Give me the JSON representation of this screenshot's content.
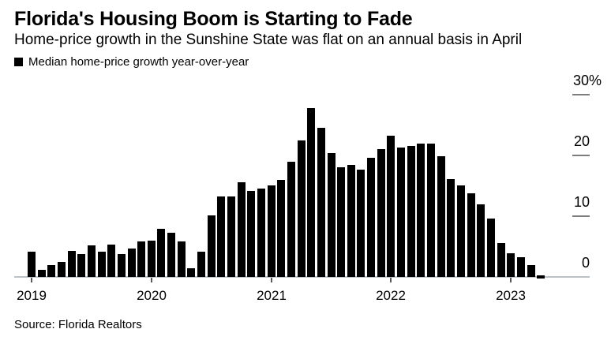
{
  "header": {
    "title": "Florida's Housing Boom is Starting to Fade",
    "subtitle": "Home-price growth in the Sunshine State was flat on an annual basis in April"
  },
  "legend": {
    "label": "Median home-price growth year-over-year",
    "swatch_color": "#000000"
  },
  "footer": {
    "source": "Source: Florida Realtors"
  },
  "chart_data": {
    "type": "bar",
    "title": "Florida's Housing Boom is Starting to Fade",
    "subtitle": "Home-price growth in the Sunshine State was flat on an annual basis in April",
    "series_name": "Median home-price growth year-over-year",
    "unit": "%",
    "x": [
      "2019-01",
      "2019-02",
      "2019-03",
      "2019-04",
      "2019-05",
      "2019-06",
      "2019-07",
      "2019-08",
      "2019-09",
      "2019-10",
      "2019-11",
      "2019-12",
      "2020-01",
      "2020-02",
      "2020-03",
      "2020-04",
      "2020-05",
      "2020-06",
      "2020-07",
      "2020-08",
      "2020-09",
      "2020-10",
      "2020-11",
      "2020-12",
      "2021-01",
      "2021-02",
      "2021-03",
      "2021-04",
      "2021-05",
      "2021-06",
      "2021-07",
      "2021-08",
      "2021-09",
      "2021-10",
      "2021-11",
      "2021-12",
      "2022-01",
      "2022-02",
      "2022-03",
      "2022-04",
      "2022-05",
      "2022-06",
      "2022-07",
      "2022-08",
      "2022-09",
      "2022-10",
      "2022-11",
      "2022-12",
      "2023-01",
      "2023-02",
      "2023-03",
      "2023-04"
    ],
    "values": [
      4.1,
      1.2,
      1.9,
      2.5,
      4.3,
      3.8,
      5.2,
      4.2,
      5.3,
      3.8,
      4.7,
      5.8,
      6.0,
      7.9,
      7.3,
      5.9,
      1.4,
      4.2,
      10.1,
      13.2,
      13.2,
      15.6,
      14.2,
      14.5,
      15.0,
      16.0,
      19.0,
      22.5,
      27.8,
      24.5,
      20.4,
      18.1,
      18.4,
      17.6,
      19.6,
      21.0,
      23.3,
      21.3,
      21.5,
      22.0,
      22.0,
      19.9,
      16.1,
      15.1,
      13.8,
      11.9,
      9.6,
      5.6,
      3.9,
      3.3,
      2.0,
      0.0
    ],
    "ylim": [
      0,
      30
    ],
    "yticks": [
      {
        "value": 0,
        "label": "0"
      },
      {
        "value": 10,
        "label": "10"
      },
      {
        "value": 20,
        "label": "20"
      },
      {
        "value": 30,
        "label": "30%"
      }
    ],
    "xticks": [
      {
        "label": "2019",
        "month_index": 0
      },
      {
        "label": "2020",
        "month_index": 12
      },
      {
        "label": "2021",
        "month_index": 24
      },
      {
        "label": "2022",
        "month_index": 36
      },
      {
        "label": "2023",
        "month_index": 48
      }
    ],
    "legend_position": "top-left",
    "grid": "right-side tick stubs only",
    "bar_color": "#000000",
    "baseline_color": "#bcc1c6",
    "ydash_color": "#7d7d7d",
    "xtick_color": "#55585c"
  }
}
